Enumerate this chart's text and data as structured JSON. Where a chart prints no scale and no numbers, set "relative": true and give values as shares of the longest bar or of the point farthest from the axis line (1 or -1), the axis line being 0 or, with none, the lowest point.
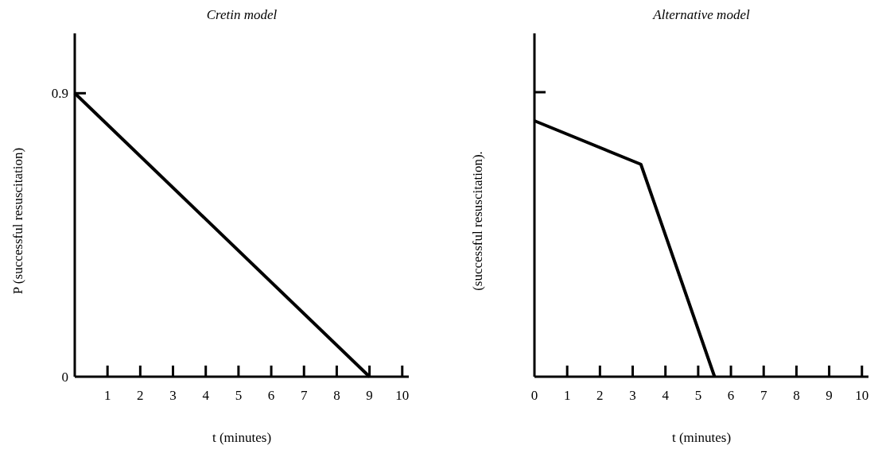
{
  "chart_data": [
    {
      "type": "line",
      "title": "Cretin model",
      "xlabel": "t (minutes)",
      "ylabel": "P (successful resuscitation)",
      "xlim": [
        0,
        10.2
      ],
      "xticks": [
        {
          "value": 0,
          "label": null
        },
        1,
        2,
        3,
        4,
        5,
        6,
        7,
        8,
        9,
        10
      ],
      "ylim": [
        0,
        1.09
      ],
      "yticks": [
        0,
        0.9
      ],
      "series": [
        {
          "color": "#000000",
          "x": [
            0,
            9
          ],
          "values": [
            0.9,
            0
          ]
        }
      ]
    },
    {
      "type": "line",
      "title": "Alternative model",
      "xlabel": "t (minutes)",
      "ylabel": "(successful resuscitation).",
      "relative": true,
      "xlim": [
        0,
        10.2
      ],
      "xticks": [
        0,
        1,
        2,
        3,
        4,
        5,
        6,
        7,
        8,
        9,
        10
      ],
      "series": [
        {
          "color": "#000000",
          "x": [
            0,
            3.25,
            5.5
          ],
          "values": [
            1,
            0.83,
            0
          ]
        }
      ]
    }
  ]
}
